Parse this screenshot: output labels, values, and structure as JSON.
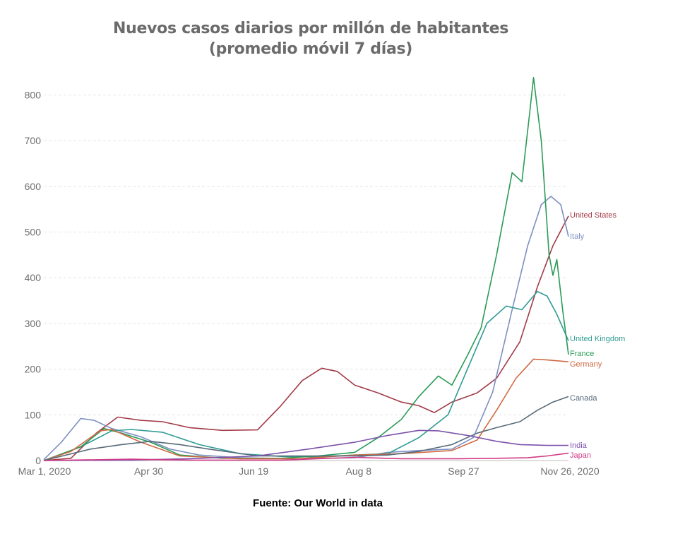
{
  "title_line1": "Nuevos casos diarios por millón de habitantes",
  "title_line2": "(promedio móvil 7 días)",
  "source": "Fuente: Our World in data",
  "chart_data": {
    "type": "line",
    "x_tick_labels": [
      "Mar 1, 2020",
      "Apr 30",
      "Jun 19",
      "Aug 8",
      "Sep 27",
      "Nov 26, 2020"
    ],
    "xlim": [
      "2020-03-01",
      "2020-11-26"
    ],
    "ylim": [
      0,
      850
    ],
    "y_ticks": [
      0,
      100,
      200,
      300,
      400,
      500,
      600,
      700,
      800
    ],
    "grid": true,
    "legend": "labels at line ends (right)",
    "series": [
      {
        "name": "United States",
        "color": "#a23b47",
        "points": [
          [
            "2020-03-01",
            0
          ],
          [
            "2020-03-15",
            5
          ],
          [
            "2020-03-28",
            60
          ],
          [
            "2020-04-08",
            95
          ],
          [
            "2020-04-20",
            88
          ],
          [
            "2020-05-01",
            85
          ],
          [
            "2020-05-15",
            72
          ],
          [
            "2020-06-01",
            66
          ],
          [
            "2020-06-19",
            67
          ],
          [
            "2020-07-01",
            120
          ],
          [
            "2020-07-12",
            175
          ],
          [
            "2020-07-22",
            202
          ],
          [
            "2020-07-30",
            195
          ],
          [
            "2020-08-08",
            165
          ],
          [
            "2020-08-20",
            148
          ],
          [
            "2020-09-01",
            128
          ],
          [
            "2020-09-10",
            120
          ],
          [
            "2020-09-18",
            105
          ],
          [
            "2020-09-27",
            128
          ],
          [
            "2020-10-10",
            148
          ],
          [
            "2020-10-20",
            180
          ],
          [
            "2020-11-01",
            260
          ],
          [
            "2020-11-10",
            380
          ],
          [
            "2020-11-18",
            470
          ],
          [
            "2020-11-26",
            535
          ]
        ]
      },
      {
        "name": "Italy",
        "color": "#7d8fc2",
        "points": [
          [
            "2020-03-01",
            2
          ],
          [
            "2020-03-10",
            40
          ],
          [
            "2020-03-20",
            92
          ],
          [
            "2020-03-27",
            88
          ],
          [
            "2020-04-05",
            70
          ],
          [
            "2020-04-20",
            52
          ],
          [
            "2020-05-05",
            25
          ],
          [
            "2020-05-20",
            12
          ],
          [
            "2020-06-10",
            6
          ],
          [
            "2020-07-10",
            4
          ],
          [
            "2020-08-08",
            6
          ],
          [
            "2020-08-25",
            18
          ],
          [
            "2020-09-10",
            22
          ],
          [
            "2020-09-27",
            25
          ],
          [
            "2020-10-08",
            50
          ],
          [
            "2020-10-18",
            150
          ],
          [
            "2020-10-28",
            330
          ],
          [
            "2020-11-05",
            470
          ],
          [
            "2020-11-12",
            560
          ],
          [
            "2020-11-17",
            578
          ],
          [
            "2020-11-22",
            560
          ],
          [
            "2020-11-26",
            490
          ]
        ]
      },
      {
        "name": "United Kingdom",
        "color": "#2f9b93",
        "points": [
          [
            "2020-03-01",
            0
          ],
          [
            "2020-03-20",
            30
          ],
          [
            "2020-04-05",
            65
          ],
          [
            "2020-04-15",
            68
          ],
          [
            "2020-05-01",
            62
          ],
          [
            "2020-05-20",
            35
          ],
          [
            "2020-06-10",
            15
          ],
          [
            "2020-07-01",
            9
          ],
          [
            "2020-07-20",
            8
          ],
          [
            "2020-08-08",
            12
          ],
          [
            "2020-08-25",
            15
          ],
          [
            "2020-09-10",
            50
          ],
          [
            "2020-09-25",
            100
          ],
          [
            "2020-10-05",
            200
          ],
          [
            "2020-10-15",
            300
          ],
          [
            "2020-10-25",
            338
          ],
          [
            "2020-11-02",
            330
          ],
          [
            "2020-11-10",
            370
          ],
          [
            "2020-11-15",
            360
          ],
          [
            "2020-11-20",
            320
          ],
          [
            "2020-11-26",
            262
          ]
        ]
      },
      {
        "name": "France",
        "color": "#2a9b57",
        "points": [
          [
            "2020-03-01",
            0
          ],
          [
            "2020-03-20",
            30
          ],
          [
            "2020-04-01",
            70
          ],
          [
            "2020-04-10",
            60
          ],
          [
            "2020-04-25",
            40
          ],
          [
            "2020-05-10",
            12
          ],
          [
            "2020-06-01",
            5
          ],
          [
            "2020-07-01",
            5
          ],
          [
            "2020-07-20",
            10
          ],
          [
            "2020-08-08",
            18
          ],
          [
            "2020-08-20",
            50
          ],
          [
            "2020-09-01",
            90
          ],
          [
            "2020-09-10",
            140
          ],
          [
            "2020-09-20",
            185
          ],
          [
            "2020-09-27",
            165
          ],
          [
            "2020-10-05",
            230
          ],
          [
            "2020-10-12",
            290
          ],
          [
            "2020-10-20",
            450
          ],
          [
            "2020-10-28",
            630
          ],
          [
            "2020-11-02",
            610
          ],
          [
            "2020-11-06",
            760
          ],
          [
            "2020-11-08",
            838
          ],
          [
            "2020-11-12",
            700
          ],
          [
            "2020-11-16",
            450
          ],
          [
            "2020-11-18",
            405
          ],
          [
            "2020-11-20",
            440
          ],
          [
            "2020-11-23",
            330
          ],
          [
            "2020-11-26",
            232
          ]
        ]
      },
      {
        "name": "Germany",
        "color": "#d06a43",
        "points": [
          [
            "2020-03-01",
            0
          ],
          [
            "2020-03-15",
            20
          ],
          [
            "2020-03-30",
            65
          ],
          [
            "2020-04-05",
            68
          ],
          [
            "2020-04-20",
            40
          ],
          [
            "2020-05-10",
            10
          ],
          [
            "2020-06-10",
            4
          ],
          [
            "2020-07-10",
            4
          ],
          [
            "2020-08-08",
            12
          ],
          [
            "2020-09-01",
            15
          ],
          [
            "2020-09-27",
            22
          ],
          [
            "2020-10-10",
            45
          ],
          [
            "2020-10-20",
            110
          ],
          [
            "2020-10-30",
            180
          ],
          [
            "2020-11-08",
            222
          ],
          [
            "2020-11-15",
            220
          ],
          [
            "2020-11-26",
            216
          ]
        ]
      },
      {
        "name": "Canada",
        "color": "#566a7a",
        "points": [
          [
            "2020-03-01",
            0
          ],
          [
            "2020-03-25",
            25
          ],
          [
            "2020-04-10",
            35
          ],
          [
            "2020-04-25",
            42
          ],
          [
            "2020-05-10",
            35
          ],
          [
            "2020-05-25",
            25
          ],
          [
            "2020-06-19",
            10
          ],
          [
            "2020-07-20",
            10
          ],
          [
            "2020-08-08",
            10
          ],
          [
            "2020-08-25",
            12
          ],
          [
            "2020-09-10",
            20
          ],
          [
            "2020-09-27",
            35
          ],
          [
            "2020-10-10",
            60
          ],
          [
            "2020-10-20",
            72
          ],
          [
            "2020-11-01",
            85
          ],
          [
            "2020-11-10",
            110
          ],
          [
            "2020-11-18",
            128
          ],
          [
            "2020-11-26",
            140
          ]
        ]
      },
      {
        "name": "India",
        "color": "#7b52ab",
        "points": [
          [
            "2020-03-01",
            0
          ],
          [
            "2020-04-15",
            1
          ],
          [
            "2020-05-15",
            4
          ],
          [
            "2020-06-19",
            10
          ],
          [
            "2020-07-15",
            25
          ],
          [
            "2020-08-08",
            40
          ],
          [
            "2020-08-25",
            55
          ],
          [
            "2020-09-10",
            66
          ],
          [
            "2020-09-20",
            65
          ],
          [
            "2020-10-05",
            55
          ],
          [
            "2020-10-20",
            42
          ],
          [
            "2020-11-01",
            35
          ],
          [
            "2020-11-15",
            33
          ],
          [
            "2020-11-26",
            33
          ]
        ]
      },
      {
        "name": "Japan",
        "color": "#d13a86",
        "points": [
          [
            "2020-03-01",
            0
          ],
          [
            "2020-04-15",
            3
          ],
          [
            "2020-05-15",
            1
          ],
          [
            "2020-07-01",
            1
          ],
          [
            "2020-08-08",
            7
          ],
          [
            "2020-09-01",
            4
          ],
          [
            "2020-10-01",
            4
          ],
          [
            "2020-10-20",
            5
          ],
          [
            "2020-11-05",
            6
          ],
          [
            "2020-11-15",
            10
          ],
          [
            "2020-11-26",
            16
          ]
        ]
      }
    ]
  }
}
